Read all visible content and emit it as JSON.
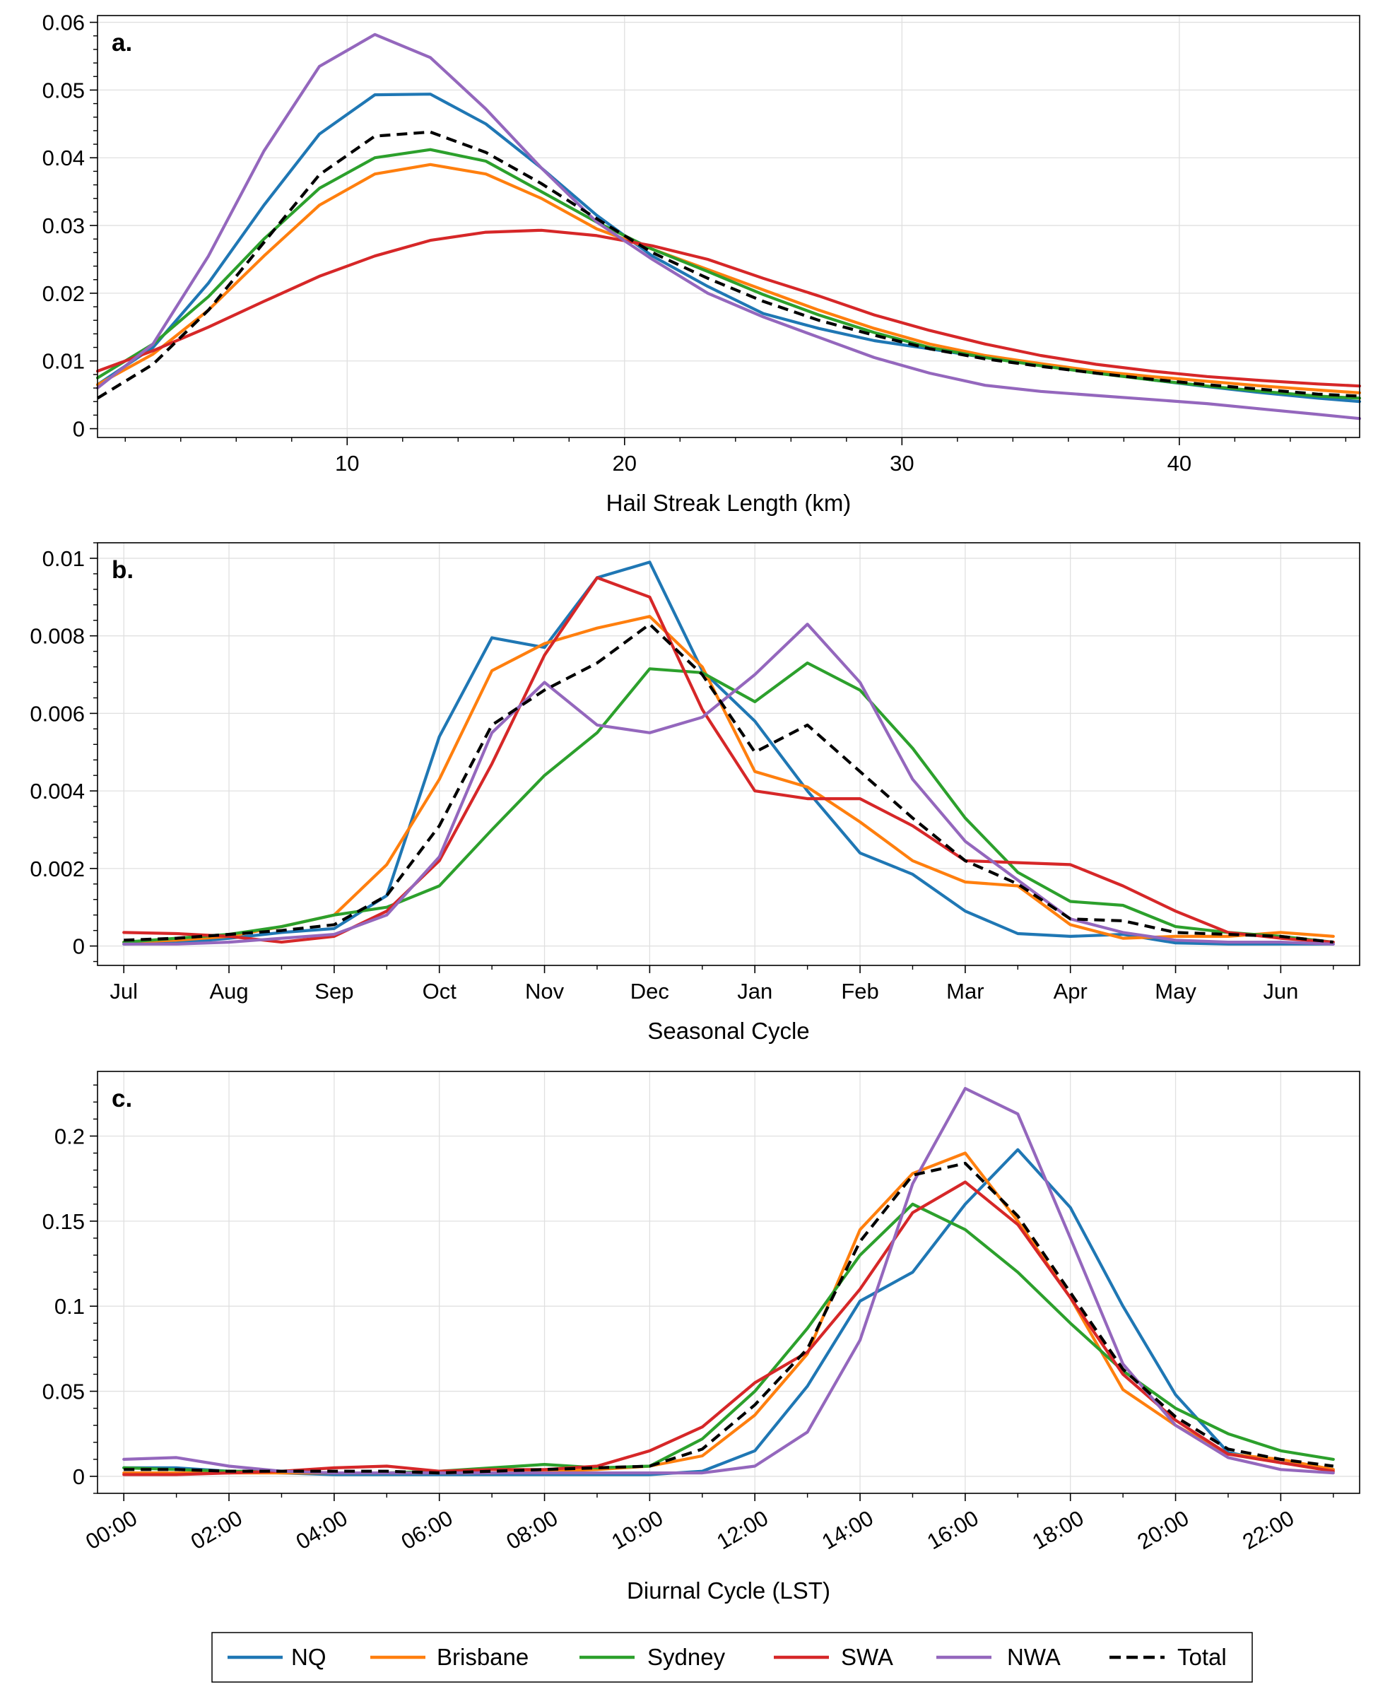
{
  "legend": {
    "entries": [
      {
        "name": "NQ",
        "color": "#1f77b4",
        "dash": false
      },
      {
        "name": "Brisbane",
        "color": "#ff7f0e",
        "dash": false
      },
      {
        "name": "Sydney",
        "color": "#2ca02c",
        "dash": false
      },
      {
        "name": "SWA",
        "color": "#d62728",
        "dash": false
      },
      {
        "name": "NWA",
        "color": "#9467bd",
        "dash": false
      },
      {
        "name": "Total",
        "color": "#000000",
        "dash": true
      }
    ]
  },
  "chart_data": [
    {
      "id": "a",
      "type": "line",
      "panel_label": "a.",
      "xlabel": "Hail Streak Length (km)",
      "ylabel": "",
      "xlim": [
        1,
        46.5
      ],
      "ylim": [
        -0.0013,
        0.061
      ],
      "xticks": [
        10,
        20,
        30,
        40
      ],
      "xtick_labels": [
        "10",
        "20",
        "30",
        "40"
      ],
      "x_minor_step": 2,
      "yticks": [
        0,
        0.01,
        0.02,
        0.03,
        0.04,
        0.05,
        0.06
      ],
      "ytick_labels": [
        "0",
        "0.01",
        "0.02",
        "0.03",
        "0.04",
        "0.05",
        "0.06"
      ],
      "y_minor_step": 0.002,
      "grid": true,
      "x": [
        1,
        3,
        5,
        7,
        9,
        11,
        13,
        15,
        17,
        19,
        21,
        23,
        25,
        27,
        29,
        31,
        33,
        35,
        37,
        39,
        41,
        43,
        45,
        46.5
      ],
      "series": [
        {
          "name": "NQ",
          "values": [
            0.0065,
            0.012,
            0.0215,
            0.033,
            0.0435,
            0.0493,
            0.0494,
            0.045,
            0.0385,
            0.0315,
            0.0255,
            0.021,
            0.017,
            0.0148,
            0.013,
            0.0118,
            0.0105,
            0.0094,
            0.0083,
            0.0072,
            0.0062,
            0.0053,
            0.0045,
            0.004
          ]
        },
        {
          "name": "Brisbane",
          "values": [
            0.0065,
            0.011,
            0.0175,
            0.0255,
            0.033,
            0.0376,
            0.039,
            0.0376,
            0.034,
            0.0295,
            0.0265,
            0.0235,
            0.0205,
            0.0175,
            0.0148,
            0.0125,
            0.0108,
            0.0096,
            0.0085,
            0.0077,
            0.007,
            0.0063,
            0.0057,
            0.0053
          ]
        },
        {
          "name": "Sydney",
          "values": [
            0.0075,
            0.0125,
            0.0195,
            0.028,
            0.0355,
            0.04,
            0.0412,
            0.0395,
            0.035,
            0.0305,
            0.0265,
            0.0232,
            0.0198,
            0.0168,
            0.0142,
            0.012,
            0.0105,
            0.0093,
            0.0082,
            0.0072,
            0.0063,
            0.0055,
            0.0048,
            0.0045
          ]
        },
        {
          "name": "SWA",
          "values": [
            0.0085,
            0.0115,
            0.015,
            0.0188,
            0.0225,
            0.0255,
            0.0278,
            0.029,
            0.0293,
            0.0285,
            0.027,
            0.025,
            0.0222,
            0.0196,
            0.0168,
            0.0145,
            0.0125,
            0.0108,
            0.0095,
            0.0085,
            0.0077,
            0.0071,
            0.0066,
            0.0063
          ]
        },
        {
          "name": "NWA",
          "values": [
            0.006,
            0.0125,
            0.0255,
            0.041,
            0.0535,
            0.0582,
            0.0548,
            0.0472,
            0.0385,
            0.0305,
            0.025,
            0.02,
            0.0165,
            0.0135,
            0.0105,
            0.0082,
            0.0064,
            0.0055,
            0.0049,
            0.0043,
            0.0037,
            0.0029,
            0.0021,
            0.0015
          ]
        },
        {
          "name": "Total",
          "values": [
            0.0045,
            0.0095,
            0.0175,
            0.0275,
            0.0375,
            0.0432,
            0.0438,
            0.0408,
            0.0362,
            0.031,
            0.026,
            0.0222,
            0.0188,
            0.016,
            0.0138,
            0.0118,
            0.0103,
            0.0092,
            0.0082,
            0.0073,
            0.0065,
            0.0058,
            0.0051,
            0.0048
          ]
        }
      ]
    },
    {
      "id": "b",
      "type": "line",
      "panel_label": "b.",
      "xlabel": "Seasonal Cycle",
      "ylabel": "",
      "xlim": [
        -0.25,
        11.75
      ],
      "ylim": [
        -0.0005,
        0.0104
      ],
      "xticks": [
        0,
        1,
        2,
        3,
        4,
        5,
        6,
        7,
        8,
        9,
        10,
        11
      ],
      "xtick_labels": [
        "Jul",
        "Aug",
        "Sep",
        "Oct",
        "Nov",
        "Dec",
        "Jan",
        "Feb",
        "Mar",
        "Apr",
        "May",
        "Jun"
      ],
      "x_minor_step": 0.5,
      "yticks": [
        0,
        0.002,
        0.004,
        0.006,
        0.008,
        0.01
      ],
      "ytick_labels": [
        "0",
        "0.002",
        "0.004",
        "0.006",
        "0.008",
        "0.01"
      ],
      "y_minor_step": 0.0004,
      "grid": true,
      "x": [
        0,
        0.5,
        1,
        1.5,
        2,
        2.5,
        3,
        3.5,
        4,
        4.5,
        5,
        5.5,
        6,
        6.5,
        7,
        7.5,
        8,
        8.5,
        9,
        9.5,
        10,
        10.5,
        11,
        11.5
      ],
      "series": [
        {
          "name": "NQ",
          "values": [
            5e-05,
            8e-05,
            0.0002,
            0.00035,
            0.00045,
            0.0013,
            0.0054,
            0.00795,
            0.0077,
            0.0095,
            0.0099,
            0.0071,
            0.0058,
            0.004,
            0.0024,
            0.00185,
            0.0009,
            0.00032,
            0.00025,
            0.0003,
            8e-05,
            5e-05,
            5e-05,
            5e-05
          ]
        },
        {
          "name": "Brisbane",
          "values": [
            0.0001,
            0.00015,
            0.00025,
            0.0005,
            0.0008,
            0.0021,
            0.0043,
            0.0071,
            0.0078,
            0.0082,
            0.0085,
            0.0072,
            0.0045,
            0.0041,
            0.0032,
            0.0022,
            0.00165,
            0.00155,
            0.00055,
            0.0002,
            0.00025,
            0.00025,
            0.00035,
            0.00025
          ]
        },
        {
          "name": "Sydney",
          "values": [
            0.0001,
            0.0002,
            0.0003,
            0.0005,
            0.0008,
            0.001,
            0.00155,
            0.003,
            0.0044,
            0.0055,
            0.00715,
            0.00705,
            0.0063,
            0.0073,
            0.0066,
            0.0051,
            0.0033,
            0.0019,
            0.00115,
            0.00105,
            0.0005,
            0.00035,
            0.00025,
            0.0001
          ]
        },
        {
          "name": "SWA",
          "values": [
            0.00035,
            0.00032,
            0.00025,
            0.0001,
            0.00025,
            0.0009,
            0.0022,
            0.0047,
            0.0075,
            0.0095,
            0.009,
            0.0061,
            0.004,
            0.0038,
            0.0038,
            0.0031,
            0.0022,
            0.00215,
            0.0021,
            0.00155,
            0.0009,
            0.00035,
            0.0002,
            0.0001
          ]
        },
        {
          "name": "NWA",
          "values": [
            5e-05,
            5e-05,
            0.0001,
            0.0002,
            0.0003,
            0.0008,
            0.0023,
            0.0055,
            0.0068,
            0.0057,
            0.0055,
            0.0059,
            0.007,
            0.0083,
            0.0068,
            0.0043,
            0.0027,
            0.0017,
            0.0007,
            0.00035,
            0.00015,
            0.0001,
            0.0001,
            5e-05
          ]
        },
        {
          "name": "Total",
          "values": [
            0.00015,
            0.0002,
            0.0003,
            0.0004,
            0.00055,
            0.0013,
            0.0031,
            0.0057,
            0.0066,
            0.0073,
            0.0083,
            0.007,
            0.005,
            0.0057,
            0.0045,
            0.0033,
            0.0022,
            0.0016,
            0.0007,
            0.00065,
            0.00035,
            0.0003,
            0.00025,
            0.0001
          ]
        }
      ]
    },
    {
      "id": "c",
      "type": "line",
      "panel_label": "c.",
      "xlabel": "Diurnal Cycle (LST)",
      "ylabel": "",
      "xlim": [
        -0.5,
        23.5
      ],
      "ylim": [
        -0.01,
        0.238
      ],
      "xticks": [
        0,
        2,
        4,
        6,
        8,
        10,
        12,
        14,
        16,
        18,
        20,
        22
      ],
      "xtick_labels": [
        "00:00",
        "02:00",
        "04:00",
        "06:00",
        "08:00",
        "10:00",
        "12:00",
        "14:00",
        "16:00",
        "18:00",
        "20:00",
        "22:00"
      ],
      "x_minor_step": 1,
      "yticks": [
        0,
        0.05,
        0.1,
        0.15,
        0.2
      ],
      "ytick_labels": [
        "0",
        "0.05",
        "0.1",
        "0.15",
        "0.2"
      ],
      "y_minor_step": 0.01,
      "grid": true,
      "x": [
        0,
        1,
        2,
        3,
        4,
        5,
        6,
        7,
        8,
        9,
        10,
        11,
        12,
        13,
        14,
        15,
        16,
        17,
        18,
        19,
        20,
        21,
        22,
        23
      ],
      "series": [
        {
          "name": "NQ",
          "values": [
            0.005,
            0.005,
            0.003,
            0.002,
            0.001,
            0.001,
            0.001,
            0.001,
            0.001,
            0.001,
            0.001,
            0.003,
            0.015,
            0.053,
            0.103,
            0.12,
            0.16,
            0.192,
            0.158,
            0.1,
            0.048,
            0.014,
            0.008,
            0.004
          ]
        },
        {
          "name": "Brisbane",
          "values": [
            0.002,
            0.002,
            0.002,
            0.002,
            0.002,
            0.002,
            0.002,
            0.002,
            0.003,
            0.004,
            0.006,
            0.012,
            0.036,
            0.072,
            0.145,
            0.178,
            0.19,
            0.15,
            0.105,
            0.051,
            0.03,
            0.013,
            0.01,
            0.004
          ]
        },
        {
          "name": "Sydney",
          "values": [
            0.005,
            0.004,
            0.003,
            0.003,
            0.002,
            0.002,
            0.003,
            0.005,
            0.007,
            0.005,
            0.006,
            0.022,
            0.05,
            0.087,
            0.13,
            0.16,
            0.145,
            0.12,
            0.09,
            0.062,
            0.04,
            0.025,
            0.015,
            0.01
          ]
        },
        {
          "name": "SWA",
          "values": [
            0.001,
            0.001,
            0.002,
            0.003,
            0.005,
            0.006,
            0.003,
            0.004,
            0.004,
            0.006,
            0.015,
            0.029,
            0.055,
            0.073,
            0.11,
            0.155,
            0.173,
            0.148,
            0.105,
            0.06,
            0.033,
            0.013,
            0.008,
            0.003
          ]
        },
        {
          "name": "NWA",
          "values": [
            0.01,
            0.011,
            0.006,
            0.003,
            0.002,
            0.002,
            0.002,
            0.002,
            0.002,
            0.002,
            0.002,
            0.002,
            0.006,
            0.026,
            0.08,
            0.172,
            0.228,
            0.213,
            0.14,
            0.066,
            0.03,
            0.011,
            0.004,
            0.002
          ]
        },
        {
          "name": "Total",
          "values": [
            0.004,
            0.004,
            0.003,
            0.003,
            0.003,
            0.003,
            0.002,
            0.003,
            0.004,
            0.005,
            0.006,
            0.016,
            0.042,
            0.075,
            0.138,
            0.177,
            0.184,
            0.153,
            0.108,
            0.063,
            0.035,
            0.016,
            0.01,
            0.006
          ]
        }
      ]
    }
  ]
}
